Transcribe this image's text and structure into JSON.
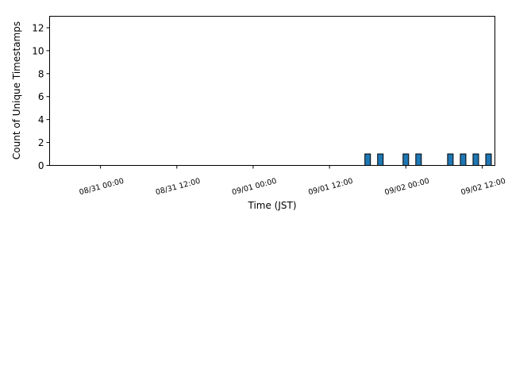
{
  "chart_data": {
    "type": "bar",
    "title": "",
    "xlabel": "Time (JST)",
    "ylabel": "Count of Unique Timestamps",
    "xlim": [
      "08/30 16:00",
      "09/02 14:00"
    ],
    "ylim": [
      0,
      13
    ],
    "x_ticks": [
      {
        "at": "08/31 00:00",
        "label": "08/31 00:00"
      },
      {
        "at": "08/31 12:00",
        "label": "08/31 12:00"
      },
      {
        "at": "09/01 00:00",
        "label": "09/01 00:00"
      },
      {
        "at": "09/01 12:00",
        "label": "09/01 12:00"
      },
      {
        "at": "09/02 00:00",
        "label": "09/02 00:00"
      },
      {
        "at": "09/02 12:00",
        "label": "09/02 12:00"
      }
    ],
    "y_ticks": [
      0,
      2,
      4,
      6,
      8,
      10,
      12
    ],
    "bar_color": "#1f77b4",
    "edge_color": "#000000",
    "grid": false,
    "bars": [
      {
        "x": "09/01 18:00",
        "value": 1
      },
      {
        "x": "09/01 20:00",
        "value": 1
      },
      {
        "x": "09/02 00:00",
        "value": 1
      },
      {
        "x": "09/02 02:00",
        "value": 1
      },
      {
        "x": "09/02 07:00",
        "value": 1
      },
      {
        "x": "09/02 09:00",
        "value": 1
      },
      {
        "x": "09/02 11:00",
        "value": 1
      },
      {
        "x": "09/02 13:00",
        "value": 1
      }
    ]
  }
}
